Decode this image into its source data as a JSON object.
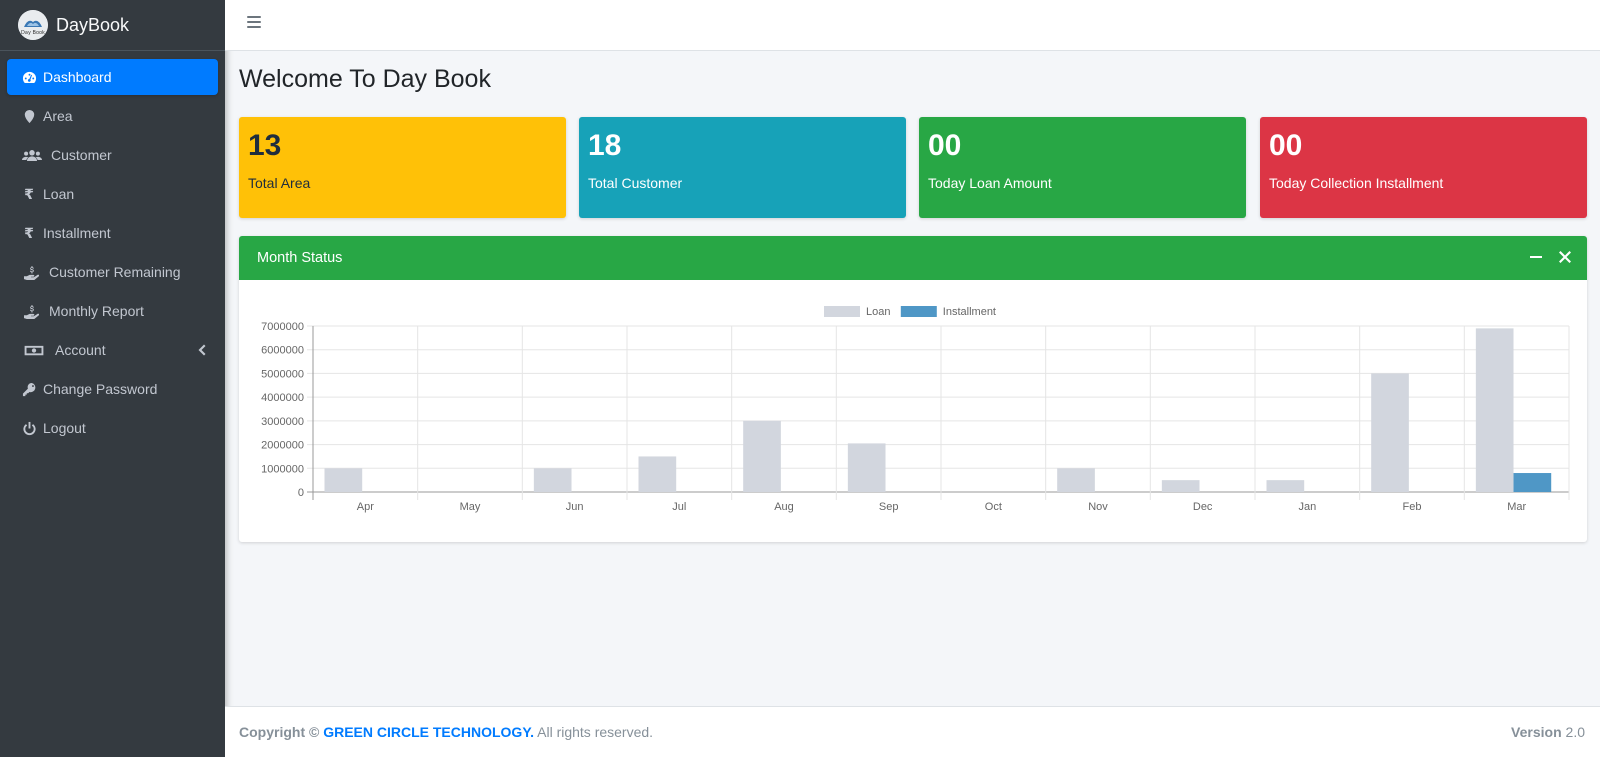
{
  "brand": {
    "name": "DayBook",
    "logo_text": "Day Book"
  },
  "sidebar": {
    "items": [
      {
        "label": "Dashboard",
        "icon": "tachometer-icon"
      },
      {
        "label": "Area",
        "icon": "map-marker-icon"
      },
      {
        "label": "Customer",
        "icon": "users-icon"
      },
      {
        "label": "Loan",
        "icon": "rupee-icon"
      },
      {
        "label": "Installment",
        "icon": "rupee-icon"
      },
      {
        "label": "Customer Remaining",
        "icon": "hand-holding-usd-icon"
      },
      {
        "label": "Monthly Report",
        "icon": "hand-holding-usd-icon"
      },
      {
        "label": "Account",
        "icon": "money-bill-icon"
      },
      {
        "label": "Change Password",
        "icon": "key-icon"
      },
      {
        "label": "Logout",
        "icon": "power-off-icon"
      }
    ]
  },
  "page": {
    "title": "Welcome To Day Book"
  },
  "stats": [
    {
      "value": "13",
      "label": "Total Area",
      "color": "#ffc107"
    },
    {
      "value": "18",
      "label": "Total Customer",
      "color": "#17a2b8"
    },
    {
      "value": "00",
      "label": "Today Loan Amount",
      "color": "#28a745"
    },
    {
      "value": "00",
      "label": "Today Collection Installment",
      "color": "#dc3545"
    }
  ],
  "card": {
    "title": "Month Status"
  },
  "chart_data": {
    "type": "bar",
    "categories": [
      "Apr",
      "May",
      "Jun",
      "Jul",
      "Aug",
      "Sep",
      "Oct",
      "Nov",
      "Dec",
      "Jan",
      "Feb",
      "Mar"
    ],
    "series": [
      {
        "name": "Loan",
        "color": "#d2d6de",
        "values": [
          1000000,
          0,
          1000000,
          1500000,
          3000000,
          2050000,
          0,
          1000000,
          500000,
          500000,
          5000000,
          6900000
        ]
      },
      {
        "name": "Installment",
        "color": "#4f97c6",
        "values": [
          0,
          0,
          0,
          0,
          0,
          0,
          0,
          0,
          0,
          0,
          0,
          800000
        ]
      }
    ],
    "yticks": [
      "0",
      "1000000",
      "2000000",
      "3000000",
      "4000000",
      "5000000",
      "6000000",
      "7000000"
    ],
    "ylim": [
      0,
      7000000
    ],
    "grid": true,
    "legend": "top"
  },
  "footer": {
    "copyright_prefix": "Copyright ©",
    "company": "GREEN CIRCLE TECHNOLOGY.",
    "rights": "All rights reserved.",
    "version_label": "Version",
    "version_value": "2.0"
  }
}
